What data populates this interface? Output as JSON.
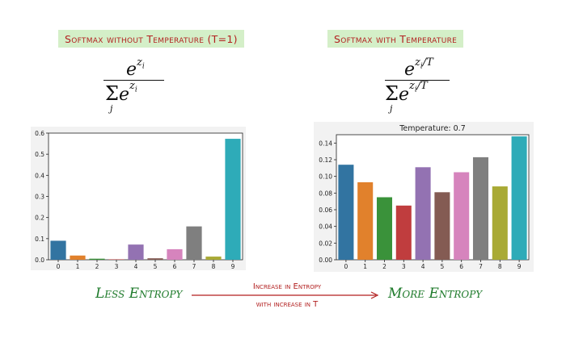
{
  "banners": {
    "left": "Softmax without Temperature (T=1)",
    "right": "Softmax with Temperature"
  },
  "formulas": {
    "left": {
      "numerator": "e^{z_i}",
      "denominator": "Σ_j e^{z_i}"
    },
    "right": {
      "numerator": "e^{z_i/T}",
      "denominator": "Σ_j e^{z_i/T}"
    }
  },
  "bottom": {
    "less_entropy": "Less Entropy",
    "more_entropy": "More Entropy",
    "arrow_line1": "Increase in Entropy",
    "arrow_line2": "with increase in T"
  },
  "colors": {
    "banner_bg": "#d4efc8",
    "banner_text": "#b21f1f",
    "green_text": "#1d7a2a",
    "arrow": "#b21f1f"
  },
  "chart_data": [
    {
      "type": "bar",
      "title": "",
      "categories": [
        "0",
        "1",
        "2",
        "3",
        "4",
        "5",
        "6",
        "7",
        "8",
        "9"
      ],
      "values": [
        0.09,
        0.02,
        0.005,
        0.002,
        0.072,
        0.007,
        0.05,
        0.158,
        0.015,
        0.573
      ],
      "ylim": [
        0,
        0.6
      ],
      "yticks": [
        "0.0",
        "0.1",
        "0.2",
        "0.3",
        "0.4",
        "0.5",
        "0.6"
      ],
      "colors": [
        "#3274a1",
        "#e1812c",
        "#3a923a",
        "#c03d3e",
        "#9372b2",
        "#845b53",
        "#d684bd",
        "#7f7f7f",
        "#a9aa35",
        "#2eabb8"
      ]
    },
    {
      "type": "bar",
      "title": "Temperature: 0.7",
      "categories": [
        "0",
        "1",
        "2",
        "3",
        "4",
        "5",
        "6",
        "7",
        "8",
        "9"
      ],
      "values": [
        0.114,
        0.093,
        0.075,
        0.065,
        0.111,
        0.081,
        0.105,
        0.123,
        0.088,
        0.148
      ],
      "ylim": [
        0,
        0.15
      ],
      "yticks": [
        "0.00",
        "0.02",
        "0.04",
        "0.06",
        "0.08",
        "0.10",
        "0.12",
        "0.14"
      ],
      "colors": [
        "#3274a1",
        "#e1812c",
        "#3a923a",
        "#c03d3e",
        "#9372b2",
        "#845b53",
        "#d684bd",
        "#7f7f7f",
        "#a9aa35",
        "#2eabb8"
      ]
    }
  ]
}
